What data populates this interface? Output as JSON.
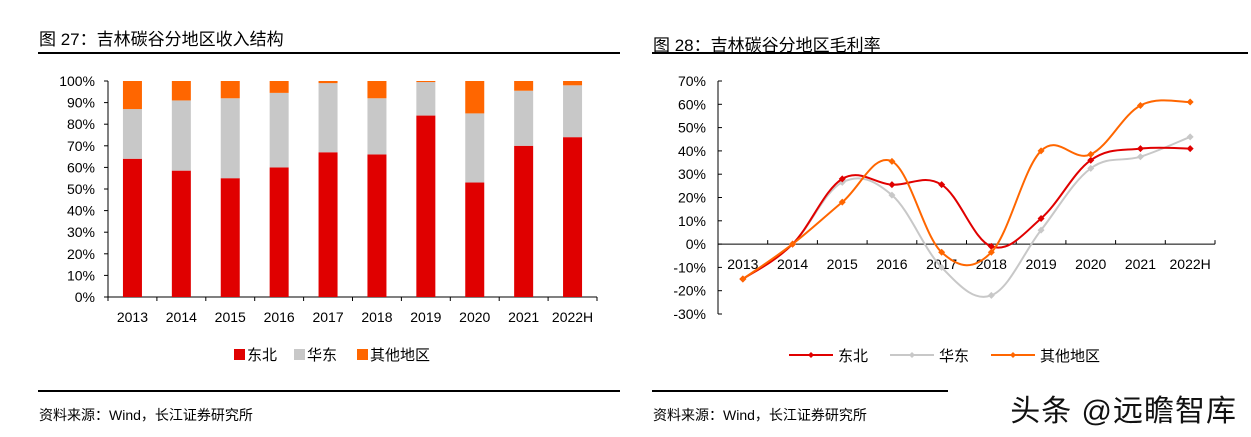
{
  "colors": {
    "northeast": "#E00000",
    "east": "#C8C8C8",
    "other": "#FF6600"
  },
  "left": {
    "title": "图 27：吉林碳谷分地区收入结构",
    "source": "资料来源：Wind，长江证券研究所"
  },
  "right": {
    "title": "图 28：吉林碳谷分地区毛利率",
    "source": "资料来源：Wind，长江证券研究所"
  },
  "watermark": "头条 @远瞻智库",
  "chart_data": [
    {
      "type": "bar",
      "stacked": true,
      "title": "图 27：吉林碳谷分地区收入结构",
      "categories": [
        "2013",
        "2014",
        "2015",
        "2016",
        "2017",
        "2018",
        "2019",
        "2020",
        "2021",
        "2022H"
      ],
      "series": [
        {
          "name": "东北",
          "values": [
            64,
            58.5,
            55,
            60,
            67,
            66,
            84,
            53,
            70,
            74
          ]
        },
        {
          "name": "华东",
          "values": [
            23,
            32.5,
            37,
            34.5,
            32,
            26,
            15.5,
            32,
            25.5,
            24
          ]
        },
        {
          "name": "其他地区",
          "values": [
            13,
            9,
            8,
            5.5,
            1,
            8,
            0.5,
            15,
            4.5,
            2
          ]
        }
      ],
      "yticks": [
        "0%",
        "10%",
        "20%",
        "30%",
        "40%",
        "50%",
        "60%",
        "70%",
        "80%",
        "90%",
        "100%"
      ],
      "ylim": [
        0,
        100
      ],
      "xlabel": "",
      "ylabel": "",
      "legend": "bottom",
      "grid": false
    },
    {
      "type": "line",
      "smooth": true,
      "title": "图 28：吉林碳谷分地区毛利率",
      "categories": [
        "2013",
        "2014",
        "2015",
        "2016",
        "2017",
        "2018",
        "2019",
        "2020",
        "2021",
        "2022H"
      ],
      "series": [
        {
          "name": "东北",
          "values": [
            -15,
            0,
            28,
            25.5,
            25.5,
            -1,
            11,
            36,
            41,
            41
          ]
        },
        {
          "name": "华东",
          "values": [
            -15,
            0,
            26.5,
            21,
            -10,
            -22,
            6,
            32.5,
            37.5,
            46
          ]
        },
        {
          "name": "其他地区",
          "values": [
            -15,
            0,
            18,
            35.5,
            -3.5,
            -3.5,
            40,
            38.5,
            59.5,
            61
          ]
        }
      ],
      "yticks": [
        "-30%",
        "-20%",
        "-10%",
        "0%",
        "10%",
        "20%",
        "30%",
        "40%",
        "50%",
        "60%",
        "70%"
      ],
      "ylim": [
        -30,
        70
      ],
      "xlabel": "",
      "ylabel": "",
      "legend": "bottom",
      "grid": false
    }
  ]
}
